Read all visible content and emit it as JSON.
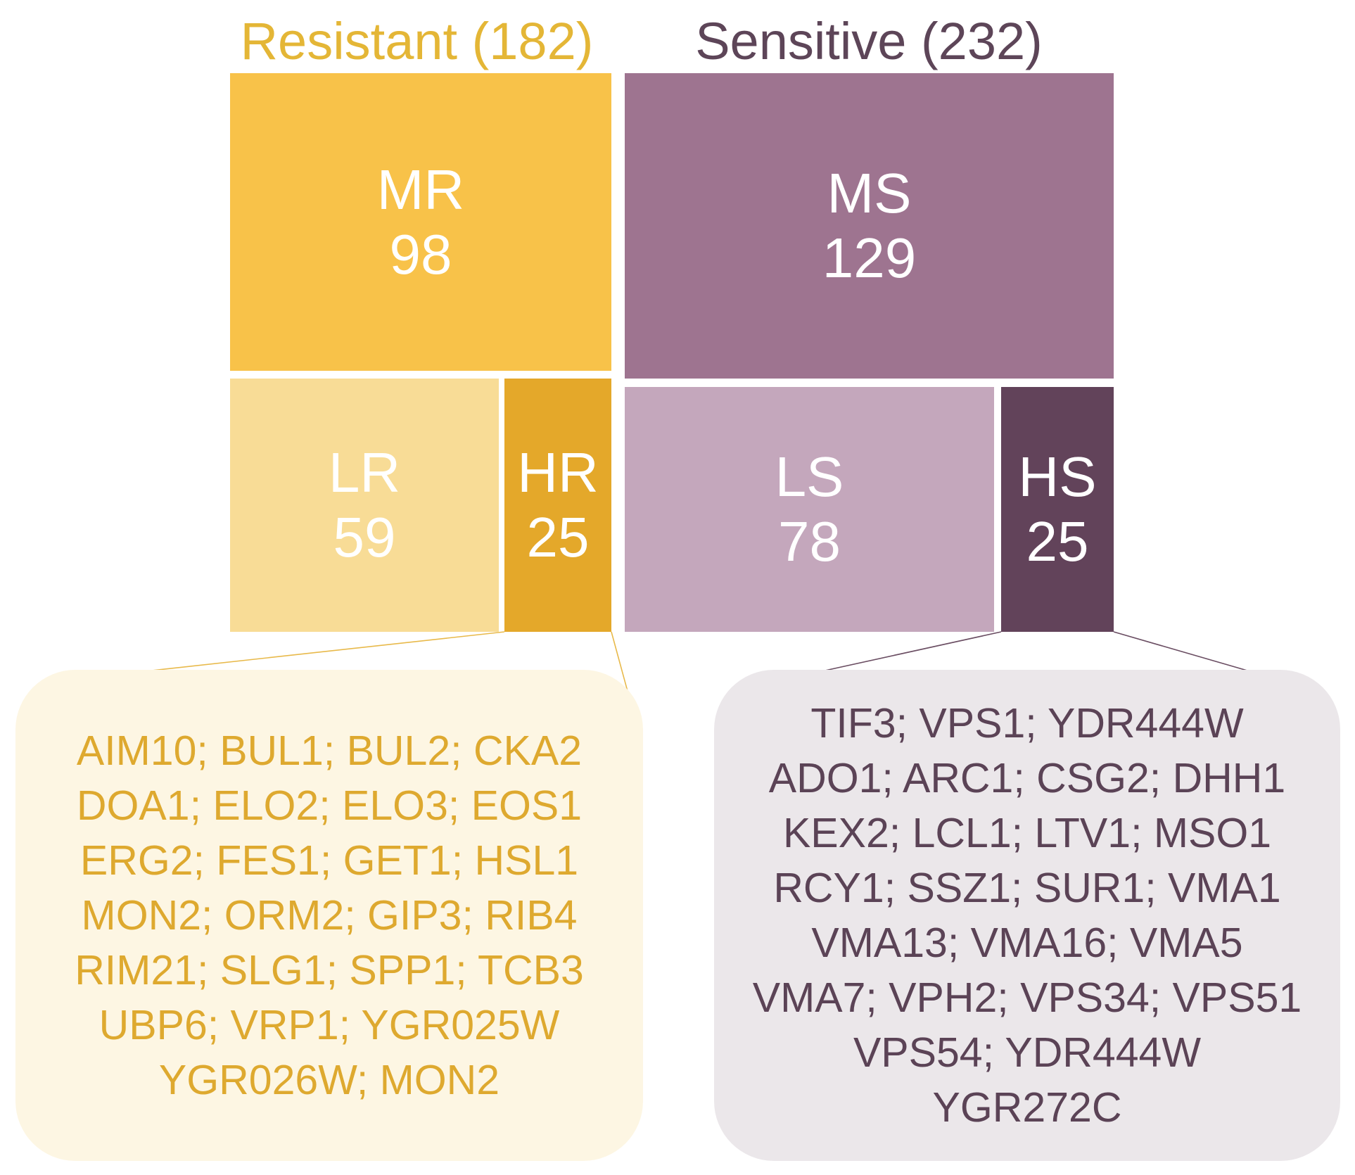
{
  "resistant": {
    "title": "Resistant (182)",
    "color": "#e4b636",
    "tiles": {
      "mr": {
        "label": "MR",
        "value": "98",
        "color": "#f8c249"
      },
      "lr": {
        "label": "LR",
        "value": "59",
        "color": "#f8dc96"
      },
      "hr": {
        "label": "HR",
        "value": "25",
        "color": "#e4a82a"
      }
    },
    "genes": [
      "AIM10; BUL1; BUL2; CKA2",
      "DOA1; ELO2; ELO3; EOS1",
      "ERG2; FES1; GET1; HSL1",
      "MON2; ORM2; GIP3; RIB4",
      "RIM21; SLG1; SPP1; TCB3",
      "UBP6; VRP1; YGR025W",
      "YGR026W; MON2"
    ]
  },
  "sensitive": {
    "title": "Sensitive (232)",
    "color": "#5d4558",
    "tiles": {
      "ms": {
        "label": "MS",
        "value": "129",
        "color": "#9e7490"
      },
      "ls": {
        "label": "LS",
        "value": "78",
        "color": "#c4a7bc"
      },
      "hs": {
        "label": "HS",
        "value": "25",
        "color": "#62435a"
      }
    },
    "genes": [
      "TIF3; VPS1; YDR444W",
      "ADO1; ARC1; CSG2; DHH1",
      "KEX2; LCL1; LTV1; MSO1",
      "RCY1; SSZ1; SUR1; VMA1",
      "VMA13; VMA16; VMA5",
      "VMA7; VPH2; VPS34; VPS51",
      "VPS54; YDR444W",
      "YGR272C"
    ]
  }
}
